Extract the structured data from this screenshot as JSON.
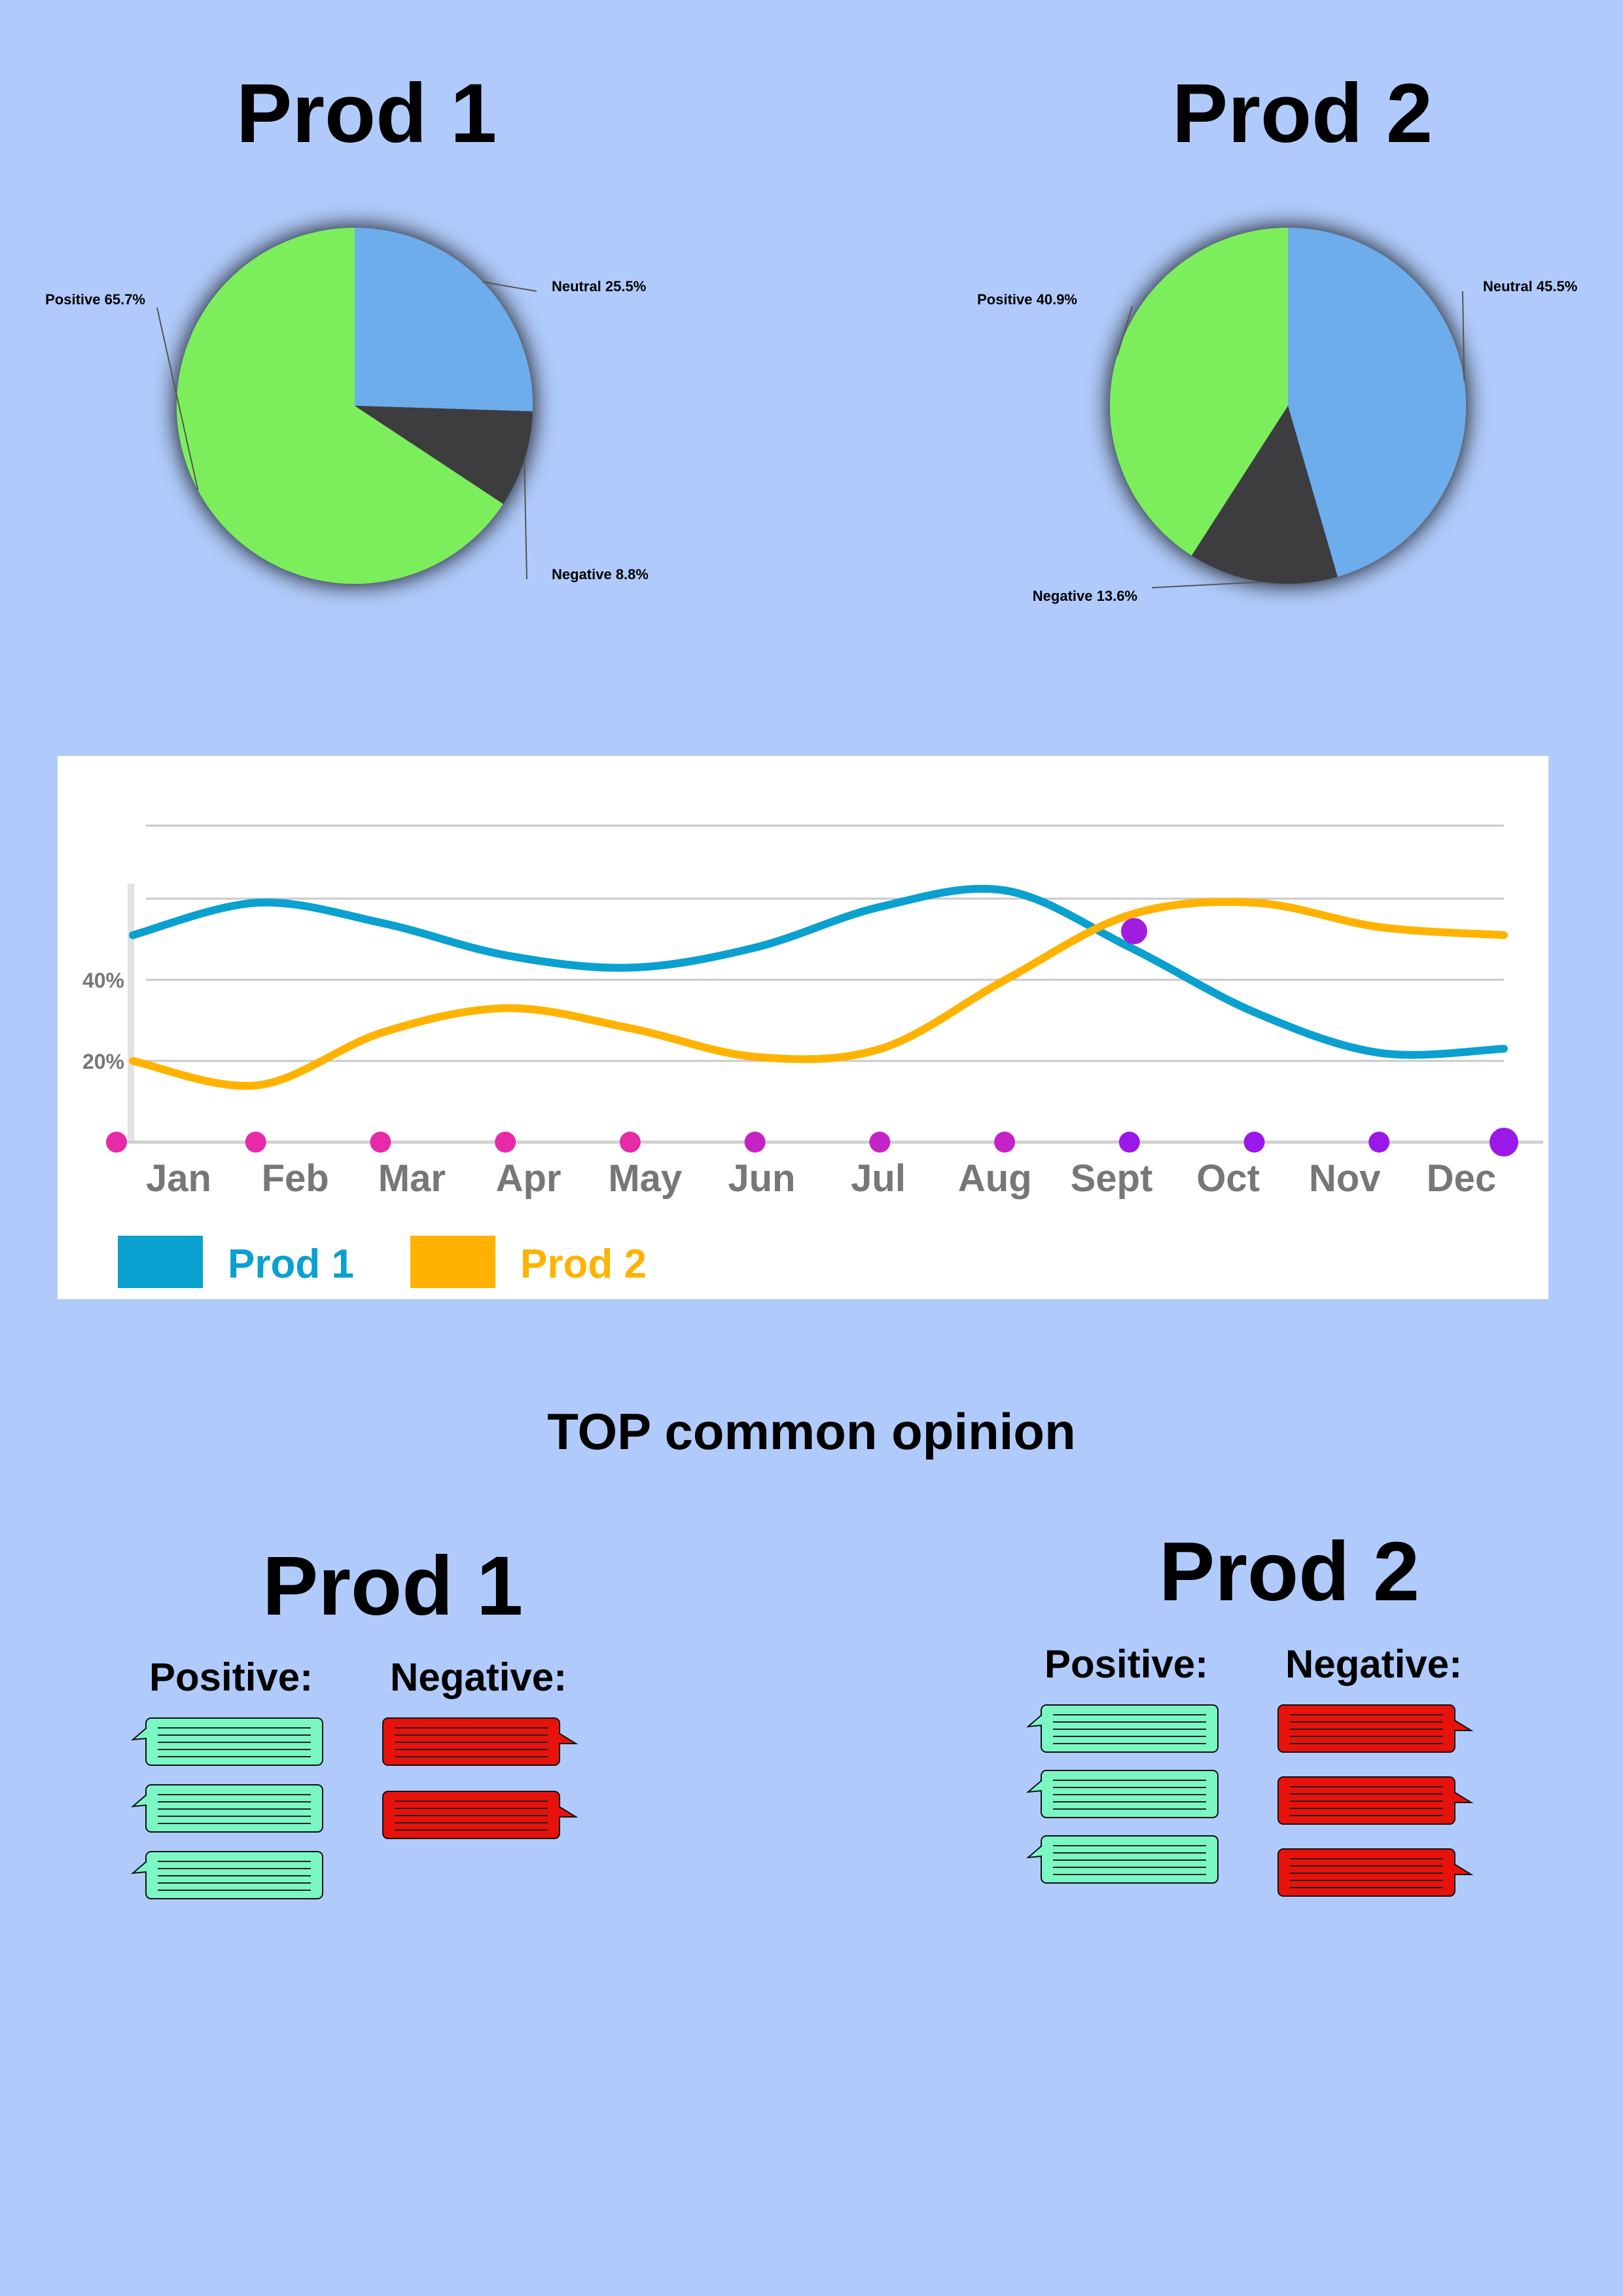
{
  "pies": [
    {
      "title": "Prod 1",
      "slices": [
        {
          "name": "Positive",
          "pct": 65.7,
          "label": "Positive 65.7%",
          "color": "#7cee5c"
        },
        {
          "name": "Neutral",
          "pct": 25.5,
          "label": "Neutral 25.5%",
          "color": "#6eadec"
        },
        {
          "name": "Negative",
          "pct": 8.8,
          "label": "Negative 8.8%",
          "color": "#3d3c40"
        }
      ]
    },
    {
      "title": "Prod 2",
      "slices": [
        {
          "name": "Positive",
          "pct": 40.9,
          "label": "Positive 40.9%",
          "color": "#7cee5c"
        },
        {
          "name": "Neutral",
          "pct": 45.5,
          "label": "Neutral 45.5%",
          "color": "#6eadec"
        },
        {
          "name": "Negative",
          "pct": 13.6,
          "label": "Negative 13.6%",
          "color": "#3d3c40"
        }
      ]
    }
  ],
  "chart_data": {
    "type": "line",
    "categories": [
      "Jan",
      "Feb",
      "Mar",
      "Apr",
      "May",
      "Jun",
      "Jul",
      "Aug",
      "Sept",
      "Oct",
      "Nov",
      "Dec"
    ],
    "yticks": [
      "20%",
      "40%"
    ],
    "series": [
      {
        "name": "Prod 1",
        "color": "#0aa0d0",
        "values": [
          51,
          59,
          54,
          46,
          43,
          48,
          58,
          62,
          48,
          32,
          22,
          23
        ]
      },
      {
        "name": "Prod 2",
        "color": "#ffb300",
        "values": [
          20,
          14,
          27,
          33,
          28,
          21,
          23,
          40,
          56,
          59,
          53,
          51
        ]
      }
    ],
    "grid": true,
    "legend": "bottom-left"
  },
  "opinion": {
    "heading": "TOP common opinion",
    "products": [
      {
        "title": "Prod 1",
        "positive_label": "Positive:",
        "negative_label": "Negative:",
        "positive_count": 3,
        "negative_count": 2
      },
      {
        "title": "Prod 2",
        "positive_label": "Positive:",
        "negative_label": "Negative:",
        "positive_count": 3,
        "negative_count": 3
      }
    ],
    "positive_color": "#7af7c3",
    "negative_color": "#e8120c"
  }
}
